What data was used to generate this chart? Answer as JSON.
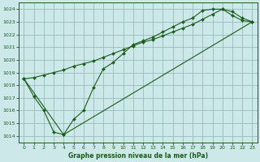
{
  "title": "Graphe pression niveau de la mer (hPa)",
  "bg_color": "#cce8e8",
  "grid_color": "#99bbbb",
  "line_color": "#1a5c1a",
  "marker_color": "#1a5c1a",
  "xlim": [
    -0.5,
    23.5
  ],
  "ylim": [
    1013.5,
    1024.5
  ],
  "yticks": [
    1014,
    1015,
    1016,
    1017,
    1018,
    1019,
    1020,
    1021,
    1022,
    1023,
    1024
  ],
  "xticks": [
    0,
    1,
    2,
    3,
    4,
    5,
    6,
    7,
    8,
    9,
    10,
    11,
    12,
    13,
    14,
    15,
    16,
    17,
    18,
    19,
    20,
    21,
    22,
    23
  ],
  "series1_x": [
    0,
    1,
    2,
    3,
    4,
    5,
    6,
    7,
    8,
    9,
    10,
    11,
    12,
    13,
    14,
    15,
    16,
    17,
    18,
    19,
    20,
    21,
    22,
    23
  ],
  "series1_y": [
    1018.5,
    1017.1,
    1016.0,
    1014.3,
    1014.1,
    1015.3,
    1016.0,
    1017.8,
    1019.3,
    1019.8,
    1020.5,
    1021.2,
    1021.5,
    1021.8,
    1022.2,
    1022.6,
    1023.0,
    1023.3,
    1023.9,
    1024.0,
    1024.0,
    1023.5,
    1023.1,
    1023.0
  ],
  "series2_x": [
    0,
    1,
    2,
    3,
    4,
    5,
    6,
    7,
    8,
    9,
    10,
    11,
    12,
    13,
    14,
    15,
    16,
    17,
    18,
    19,
    20,
    21,
    22,
    23
  ],
  "series2_y": [
    1018.5,
    1018.6,
    1018.8,
    1019.0,
    1019.2,
    1019.5,
    1019.7,
    1019.9,
    1020.2,
    1020.5,
    1020.8,
    1021.1,
    1021.4,
    1021.6,
    1021.9,
    1022.2,
    1022.5,
    1022.8,
    1023.2,
    1023.6,
    1024.0,
    1023.8,
    1023.3,
    1023.0
  ],
  "series3_x": [
    0,
    4,
    23
  ],
  "series3_y": [
    1018.5,
    1014.1,
    1023.0
  ]
}
